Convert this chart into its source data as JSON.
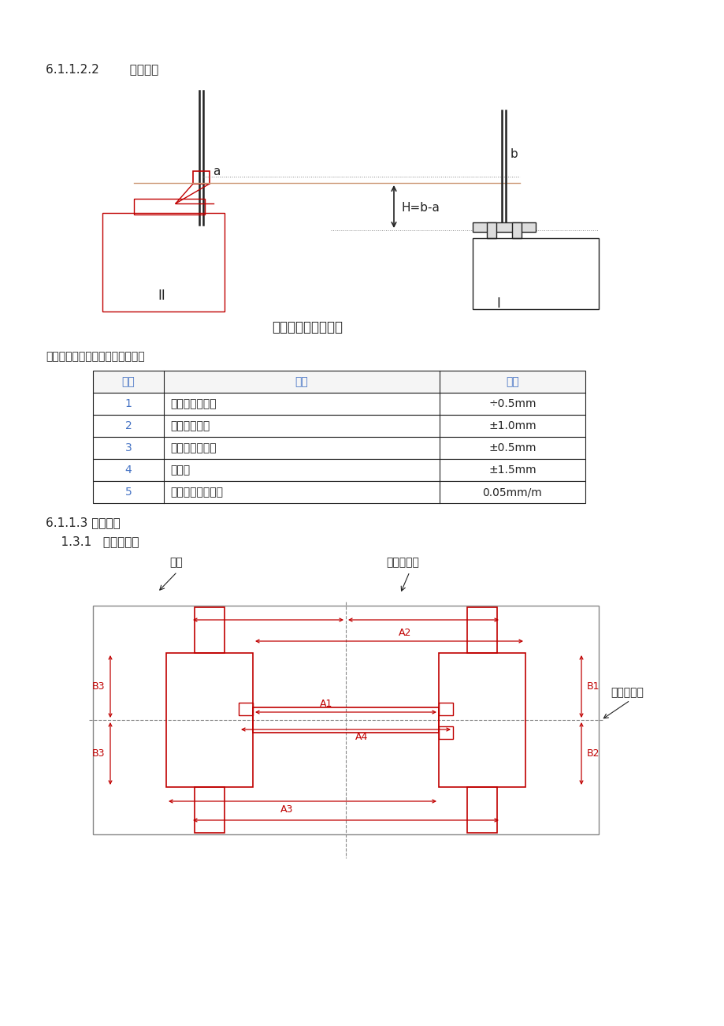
{
  "bg_color": "#ffffff",
  "text_color": "#000000",
  "blue_color": "#4472C4",
  "red_color": "#C00000",
  "dark_color": "#222222",
  "gray_color": "#888888",
  "light_gray": "#cccccc",
  "section1_title": "6.1.1.2.2        标高测量",
  "diagram1_caption": "相对标高找正示意图",
  "table_intro": "以上所测量偏差必须满足下表要求",
  "table_headers": [
    "序号",
    "项目",
    "偏差"
  ],
  "table_rows": [
    [
      "1",
      "底座纵向中心线",
      "÷0.5mm"
    ],
    [
      "2",
      "两底座中心距",
      "±1.0mm"
    ],
    [
      "3",
      "两底座相对标高",
      "±0.5mm"
    ],
    [
      "4",
      "对角线",
      "±1.5mm"
    ],
    [
      "5",
      "底座加工面的斜度",
      "0.05mm/m"
    ]
  ],
  "section2_title": "6.1.1.3 托轮安装",
  "section2_sub": "    1.3.1   中心线测量",
  "label_dizuo": "底座",
  "label_dizuo_cx": "底座中心线",
  "label_heng_cx": "横向中心线"
}
